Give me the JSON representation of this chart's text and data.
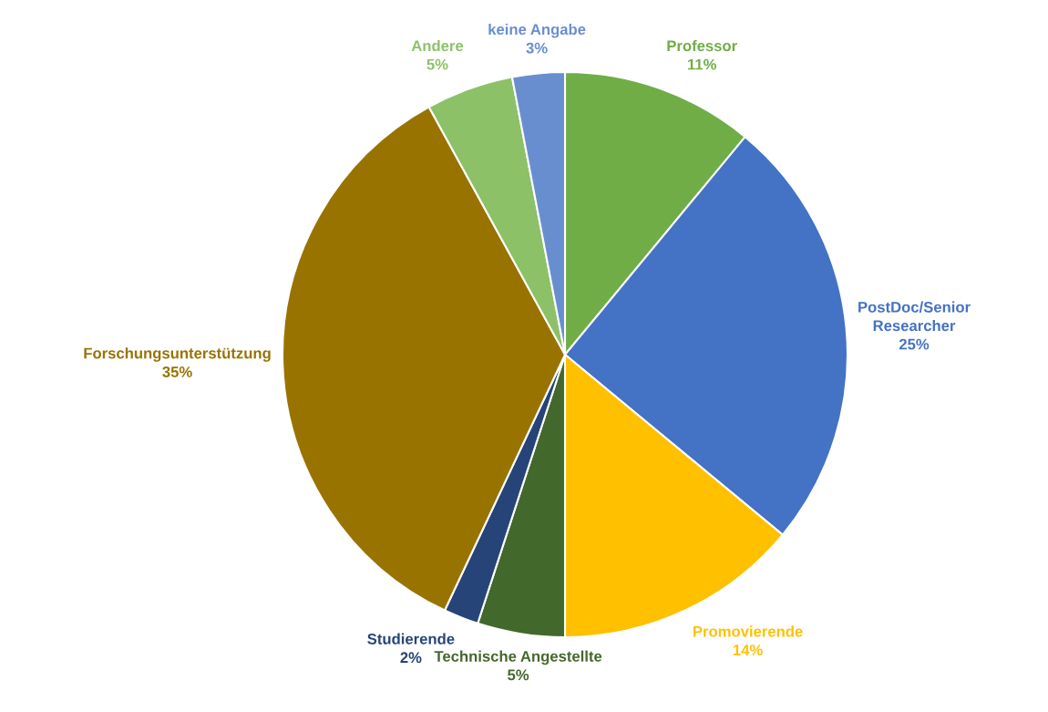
{
  "chart_data": {
    "type": "pie",
    "categories": [
      "Professor",
      "PostDoc/Senior Researcher",
      "Promovierende",
      "Technische Angestellte",
      "Studierende",
      "Forschungsunterstützung",
      "Andere",
      "keine Angabe"
    ],
    "values": [
      11,
      25,
      14,
      5,
      2,
      35,
      5,
      3
    ],
    "value_labels": [
      "11%",
      "25%",
      "14%",
      "5%",
      "2%",
      "35%",
      "5%",
      "3%"
    ],
    "colors": [
      "#70ad47",
      "#4472c4",
      "#ffc000",
      "#43682b",
      "#264478",
      "#997300",
      "#8cc168",
      "#698ed0"
    ],
    "legend": false
  }
}
